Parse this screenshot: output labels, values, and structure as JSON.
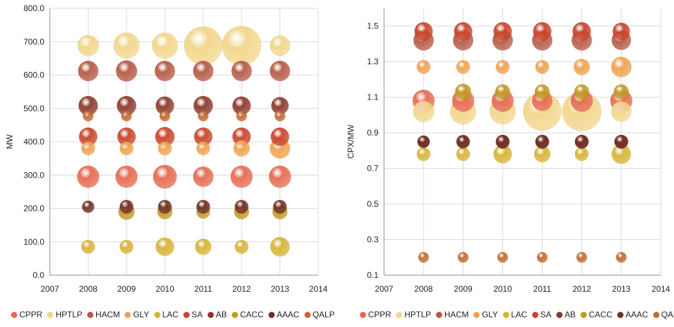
{
  "colors": {
    "CPPR": "#E56A52",
    "HPTLP": "#F2D68A",
    "HACM": "#B65A45",
    "GLY": "#F0A24E",
    "LAC": "#D7B335",
    "SA": "#C9442B",
    "AB": "#8B3A2A",
    "CACC": "#C09A25",
    "AAAC": "#6E2F25",
    "QALP": "#C26A2F"
  },
  "chart_data": [
    {
      "type": "bubble",
      "ylabel": "MW",
      "xlim": [
        2007,
        2014
      ],
      "xticks": [
        "2007",
        "2008",
        "2009",
        "2010",
        "2011",
        "2012",
        "2013",
        "2014"
      ],
      "ylim": [
        0,
        800
      ],
      "yticks": [
        "0.0",
        "100.0",
        "200.0",
        "300.0",
        "400.0",
        "500.0",
        "600.0",
        "700.0",
        "800.0"
      ],
      "legend": [
        "CPPR",
        "HPTLP",
        "HACM",
        "GLY",
        "LAC",
        "SA",
        "AB",
        "CACC",
        "AAAC",
        "QALP"
      ],
      "legend_position": "bottom",
      "series": [
        {
          "name": "CPPR",
          "points": [
            [
              2008,
              295,
              1.3
            ],
            [
              2009,
              295,
              1.3
            ],
            [
              2010,
              295,
              1.5
            ],
            [
              2011,
              295,
              1.1
            ],
            [
              2012,
              295,
              1.3
            ],
            [
              2013,
              295,
              1.3
            ]
          ]
        },
        {
          "name": "HPTLP",
          "points": [
            [
              2008,
              688,
              1.2
            ],
            [
              2009,
              688,
              1.8
            ],
            [
              2010,
              688,
              1.8
            ],
            [
              2011,
              688,
              3.9
            ],
            [
              2012,
              688,
              4.1
            ],
            [
              2013,
              688,
              1.1
            ]
          ]
        },
        {
          "name": "HACM",
          "points": [
            [
              2008,
              612,
              1.1
            ],
            [
              2009,
              612,
              1.2
            ],
            [
              2010,
              612,
              1.1
            ],
            [
              2011,
              612,
              1.1
            ],
            [
              2012,
              612,
              1.1
            ],
            [
              2013,
              612,
              1.1
            ]
          ]
        },
        {
          "name": "GLY",
          "points": [
            [
              2008,
              380,
              0.5
            ],
            [
              2009,
              380,
              0.5
            ],
            [
              2010,
              380,
              0.5
            ],
            [
              2011,
              380,
              0.5
            ],
            [
              2012,
              380,
              0.7
            ],
            [
              2013,
              380,
              1.1
            ]
          ]
        },
        {
          "name": "LAC",
          "points": [
            [
              2008,
              85,
              0.5
            ],
            [
              2009,
              85,
              0.5
            ],
            [
              2010,
              85,
              0.9
            ],
            [
              2011,
              85,
              0.7
            ],
            [
              2012,
              85,
              0.5
            ],
            [
              2013,
              85,
              1.0
            ]
          ]
        },
        {
          "name": "SA",
          "points": [
            [
              2008,
              415,
              0.9
            ],
            [
              2009,
              415,
              0.9
            ],
            [
              2010,
              415,
              1.0
            ],
            [
              2011,
              415,
              0.9
            ],
            [
              2012,
              415,
              0.9
            ],
            [
              2013,
              415,
              0.9
            ]
          ]
        },
        {
          "name": "AB",
          "points": [
            [
              2008,
              508,
              1.0
            ],
            [
              2009,
              508,
              1.0
            ],
            [
              2010,
              508,
              0.9
            ],
            [
              2011,
              508,
              1.0
            ],
            [
              2012,
              508,
              0.9
            ],
            [
              2013,
              508,
              0.8
            ]
          ]
        },
        {
          "name": "CACC",
          "points": [
            [
              2009,
              190,
              0.7
            ],
            [
              2010,
              190,
              0.6
            ],
            [
              2011,
              190,
              0.5
            ],
            [
              2012,
              190,
              0.6
            ],
            [
              2013,
              190,
              0.6
            ]
          ]
        },
        {
          "name": "AAAC",
          "points": [
            [
              2008,
              205,
              0.4
            ],
            [
              2009,
              205,
              0.5
            ],
            [
              2010,
              205,
              0.5
            ],
            [
              2011,
              205,
              0.5
            ],
            [
              2012,
              205,
              0.5
            ],
            [
              2013,
              205,
              0.5
            ]
          ]
        },
        {
          "name": "QALP",
          "points": [
            [
              2008,
              477,
              0.3
            ],
            [
              2009,
              477,
              0.3
            ],
            [
              2010,
              477,
              0.3
            ],
            [
              2011,
              477,
              0.3
            ],
            [
              2012,
              477,
              0.3
            ],
            [
              2013,
              477,
              0.3
            ]
          ]
        }
      ]
    },
    {
      "type": "bubble",
      "ylabel": "CPX/MW",
      "xlim": [
        2007,
        2014
      ],
      "xticks": [
        "2007",
        "2008",
        "2009",
        "2010",
        "2011",
        "2012",
        "2013",
        "2014"
      ],
      "ylim": [
        0.1,
        1.6
      ],
      "yticks": [
        "0.1",
        "0.3",
        "0.5",
        "0.7",
        "0.9",
        "1.1",
        "1.3",
        "1.5"
      ],
      "legend": [
        "CPPR",
        "HPTLP",
        "HACM",
        "GLY",
        "LAC",
        "SA",
        "AB",
        "CACC",
        "AAAC",
        "QALP"
      ],
      "legend_position": "bottom",
      "series": [
        {
          "name": "CPPR",
          "points": [
            [
              2008,
              1.08,
              1.3
            ],
            [
              2009,
              1.08,
              1.3
            ],
            [
              2010,
              1.08,
              1.3
            ],
            [
              2011,
              1.08,
              1.1
            ],
            [
              2012,
              1.08,
              1.3
            ],
            [
              2013,
              1.08,
              1.3
            ]
          ]
        },
        {
          "name": "HPTLP",
          "points": [
            [
              2008,
              1.02,
              1.2
            ],
            [
              2009,
              1.02,
              1.8
            ],
            [
              2010,
              1.02,
              1.8
            ],
            [
              2011,
              1.02,
              3.9
            ],
            [
              2012,
              1.02,
              4.1
            ],
            [
              2013,
              1.02,
              1.1
            ]
          ]
        },
        {
          "name": "HACM",
          "points": [
            [
              2008,
              1.42,
              1.1
            ],
            [
              2009,
              1.42,
              1.1
            ],
            [
              2010,
              1.42,
              1.1
            ],
            [
              2011,
              1.42,
              1.1
            ],
            [
              2012,
              1.42,
              1.1
            ],
            [
              2013,
              1.42,
              1.0
            ]
          ]
        },
        {
          "name": "GLY",
          "points": [
            [
              2008,
              1.27,
              0.5
            ],
            [
              2009,
              1.27,
              0.5
            ],
            [
              2010,
              1.27,
              0.5
            ],
            [
              2011,
              1.27,
              0.5
            ],
            [
              2012,
              1.27,
              0.7
            ],
            [
              2013,
              1.27,
              1.1
            ]
          ]
        },
        {
          "name": "LAC",
          "points": [
            [
              2008,
              0.78,
              0.5
            ],
            [
              2009,
              0.78,
              0.5
            ],
            [
              2010,
              0.78,
              0.9
            ],
            [
              2011,
              0.78,
              0.7
            ],
            [
              2012,
              0.78,
              0.5
            ],
            [
              2013,
              0.78,
              1.0
            ]
          ]
        },
        {
          "name": "SA",
          "points": [
            [
              2008,
              1.47,
              0.9
            ],
            [
              2009,
              1.47,
              0.9
            ],
            [
              2010,
              1.47,
              0.9
            ],
            [
              2011,
              1.47,
              0.9
            ],
            [
              2012,
              1.47,
              0.9
            ],
            [
              2013,
              1.47,
              0.8
            ]
          ]
        },
        {
          "name": "AB",
          "points": [
            [
              2008,
              0.85,
              0.4
            ],
            [
              2009,
              0.85,
              0.5
            ],
            [
              2010,
              0.85,
              0.5
            ],
            [
              2011,
              0.85,
              0.5
            ],
            [
              2012,
              0.85,
              0.5
            ],
            [
              2013,
              0.85,
              0.5
            ]
          ]
        },
        {
          "name": "CACC",
          "points": [
            [
              2009,
              1.13,
              0.7
            ],
            [
              2010,
              1.13,
              0.6
            ],
            [
              2011,
              1.13,
              0.6
            ],
            [
              2012,
              1.13,
              0.6
            ],
            [
              2013,
              1.13,
              0.6
            ]
          ]
        },
        {
          "name": "AAAC",
          "points": [
            [
              2008,
              0.85,
              0.4
            ],
            [
              2009,
              0.85,
              0.4
            ],
            [
              2010,
              0.85,
              0.5
            ],
            [
              2011,
              0.85,
              0.5
            ],
            [
              2012,
              0.85,
              0.5
            ],
            [
              2013,
              0.85,
              0.5
            ]
          ]
        },
        {
          "name": "QALP",
          "points": [
            [
              2008,
              0.2,
              0.3
            ],
            [
              2009,
              0.2,
              0.3
            ],
            [
              2010,
              0.2,
              0.3
            ],
            [
              2011,
              0.2,
              0.3
            ],
            [
              2012,
              0.2,
              0.3
            ],
            [
              2013,
              0.2,
              0.3
            ]
          ]
        }
      ]
    }
  ]
}
